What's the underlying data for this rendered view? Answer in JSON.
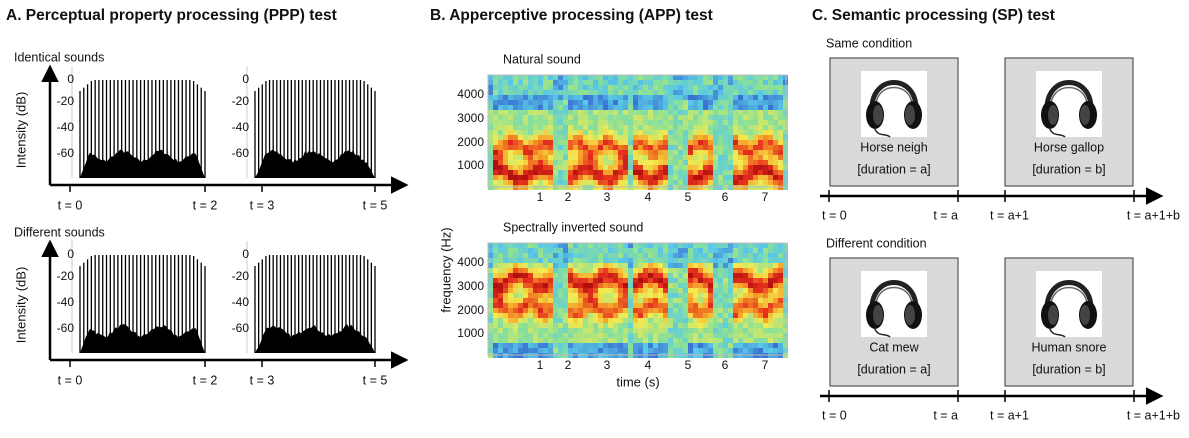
{
  "panels": [
    {
      "title": "A. Perceptual property processing (PPP) test",
      "y_label": "Intensity (dB)",
      "y_ticks": [
        "0",
        "-20",
        "-40",
        "-60"
      ],
      "rows": [
        {
          "label": "Identical sounds"
        },
        {
          "label": "Different sounds"
        }
      ],
      "time_labels": [
        "t = 0",
        "t = 2",
        "t = 3",
        "t = 5"
      ]
    },
    {
      "title": "B. Apperceptive processing (APP) test",
      "y_label": "frequency (Hz)",
      "y_ticks": [
        "4000",
        "3000",
        "2000",
        "1000"
      ],
      "x_ticks": [
        "1",
        "2",
        "3",
        "4",
        "5",
        "6",
        "7"
      ],
      "x_label": "time (s)",
      "rows": [
        {
          "label": "Natural sound"
        },
        {
          "label": "Spectrally inverted sound"
        }
      ]
    },
    {
      "title": "C. Semantic processing (SP) test",
      "rows": [
        {
          "label": "Same condition",
          "stimuli": [
            {
              "name": "Horse neigh",
              "duration": "[duration  = a]"
            },
            {
              "name": "Horse gallop",
              "duration": "[duration  = b]"
            }
          ]
        },
        {
          "label": "Different condition",
          "stimuli": [
            {
              "name": "Cat mew",
              "duration": "[duration  = a]"
            },
            {
              "name": "Human snore",
              "duration": "[duration  = b]"
            }
          ]
        }
      ],
      "time_labels": [
        "t = 0",
        "t = a",
        "t = a+1",
        "t = a+1+b"
      ]
    }
  ]
}
